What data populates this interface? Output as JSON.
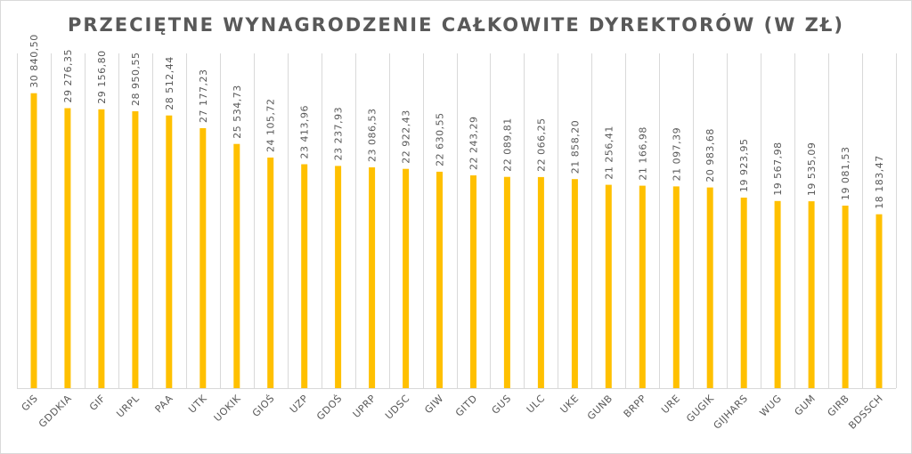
{
  "chart_data": {
    "type": "bar",
    "title": "PRZECIĘTNE WYNAGRODZENIE CAŁKOWITE DYREKTORÓW (W ZŁ)",
    "categories": [
      "GIS",
      "GDDKIA",
      "GIF",
      "URPL",
      "PAA",
      "UTK",
      "UOKIK",
      "GIOŚ",
      "UZP",
      "GDOŚ",
      "UPRP",
      "UDSC",
      "GIW",
      "GITD",
      "GUS",
      "ULC",
      "UKE",
      "GUNB",
      "BRPP",
      "URE",
      "GUGIK",
      "GIJHARS",
      "WUG",
      "GUM",
      "GIRB",
      "BDSSCH"
    ],
    "values": [
      30840.5,
      29276.35,
      29156.8,
      28950.55,
      28512.44,
      27177.23,
      25534.73,
      24105.72,
      23413.96,
      23237.93,
      23086.53,
      22922.43,
      22630.55,
      22243.29,
      22089.81,
      22066.25,
      21858.2,
      21256.41,
      21166.98,
      21097.39,
      20983.68,
      19923.95,
      19567.98,
      19535.09,
      19081.53,
      18183.47
    ],
    "data_labels": [
      "30 840,50",
      "29 276,35",
      "29 156,80",
      "28 950,55",
      "28 512,44",
      "27 177,23",
      "25 534,73",
      "24 105,72",
      "23 413,96",
      "23 237,93",
      "23 086,53",
      "22 922,43",
      "22 630,55",
      "22 243,29",
      "22 089,81",
      "22 066,25",
      "21 858,20",
      "21 256,41",
      "21 166,98",
      "21 097,39",
      "20 983,68",
      "19 923,95",
      "19 567,98",
      "19 535,09",
      "19 081,53",
      "18 183,47"
    ],
    "ylim": [
      0,
      35000
    ],
    "grid": "vertical",
    "legend": "none",
    "bar_color": "#ffc000"
  }
}
